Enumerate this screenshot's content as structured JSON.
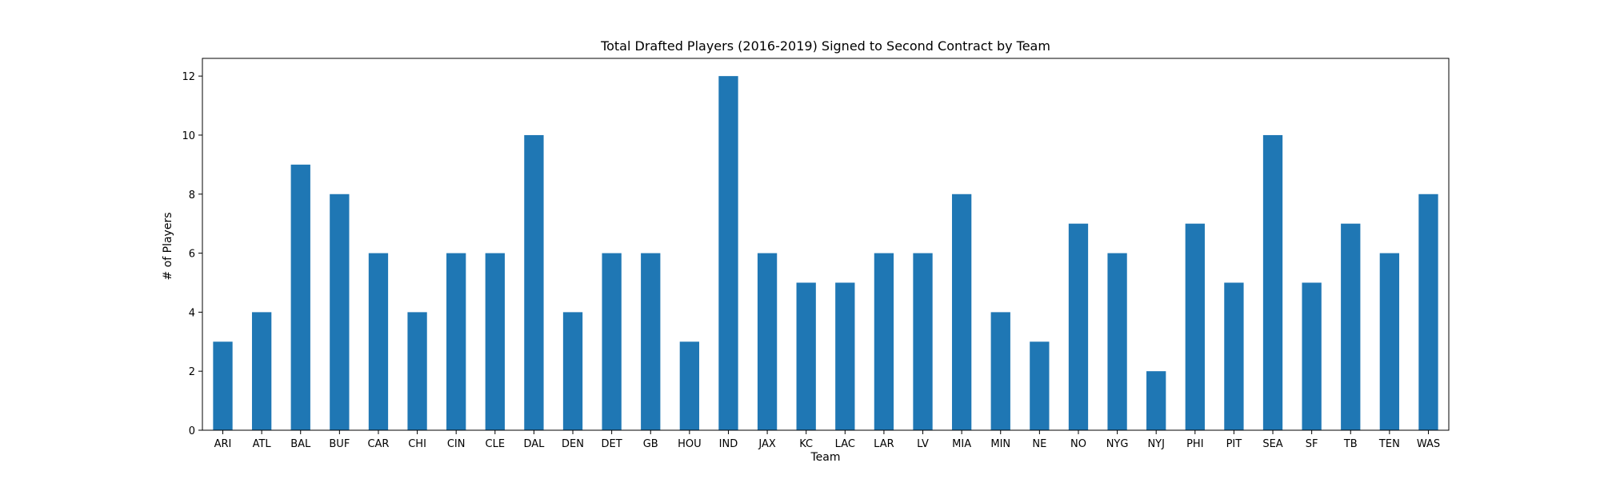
{
  "chart_data": {
    "type": "bar",
    "title": "Total Drafted Players (2016-2019) Signed to Second Contract by Team",
    "xlabel": "Team",
    "ylabel": "# of Players",
    "categories": [
      "ARI",
      "ATL",
      "BAL",
      "BUF",
      "CAR",
      "CHI",
      "CIN",
      "CLE",
      "DAL",
      "DEN",
      "DET",
      "GB",
      "HOU",
      "IND",
      "JAX",
      "KC",
      "LAC",
      "LAR",
      "LV",
      "MIA",
      "MIN",
      "NE",
      "NO",
      "NYG",
      "NYJ",
      "PHI",
      "PIT",
      "SEA",
      "SF",
      "TB",
      "TEN",
      "WAS"
    ],
    "values": [
      3,
      4,
      9,
      8,
      6,
      4,
      6,
      6,
      10,
      4,
      6,
      6,
      3,
      12,
      6,
      5,
      5,
      6,
      6,
      8,
      4,
      3,
      7,
      6,
      2,
      7,
      5,
      10,
      5,
      7,
      6,
      8
    ],
    "ylim": [
      0,
      12.6
    ],
    "yticks": [
      0,
      2,
      4,
      6,
      8,
      10,
      12
    ],
    "grid": false,
    "bar_color": "#1f77b4"
  }
}
